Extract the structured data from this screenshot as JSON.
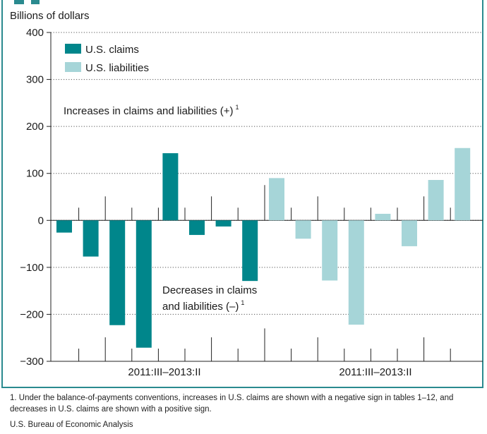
{
  "chart_data": {
    "type": "bar",
    "ylabel": "Billions of dollars",
    "ylim": [
      -300,
      400
    ],
    "yticks": [
      -300,
      -200,
      -100,
      0,
      100,
      200,
      300,
      400
    ],
    "ytick_labels": [
      "−300",
      "−200",
      "−100",
      "0",
      "100",
      "200",
      "300",
      "400"
    ],
    "grid": "horizontal dotted",
    "legend_position": "top-left",
    "series": [
      {
        "name": "U.S. claims",
        "color": "#00868b",
        "values": [
          -26,
          -77,
          -223,
          -271,
          143,
          -31,
          -13,
          -129
        ]
      },
      {
        "name": "U.S. liabilities",
        "color": "#a6d5d8",
        "values": [
          90,
          -39,
          -128,
          -222,
          14,
          -55,
          86,
          154
        ]
      }
    ],
    "group_labels": [
      "2011:III–2013:II",
      "2011:III–2013:II"
    ],
    "annotations": {
      "increases": "Increases in claims and liabilities (+)",
      "decreases_line1": "Decreases in claims",
      "decreases_line2": "and liabilities (–)",
      "superscript": "1"
    }
  },
  "footnote": "1. Under the balance-of-payments conventions, increases in U.S. claims are shown with a negative sign in tables 1–12, and decreases in U.S. claims are shown with a positive sign.",
  "source": "U.S. Bureau of Economic Analysis"
}
